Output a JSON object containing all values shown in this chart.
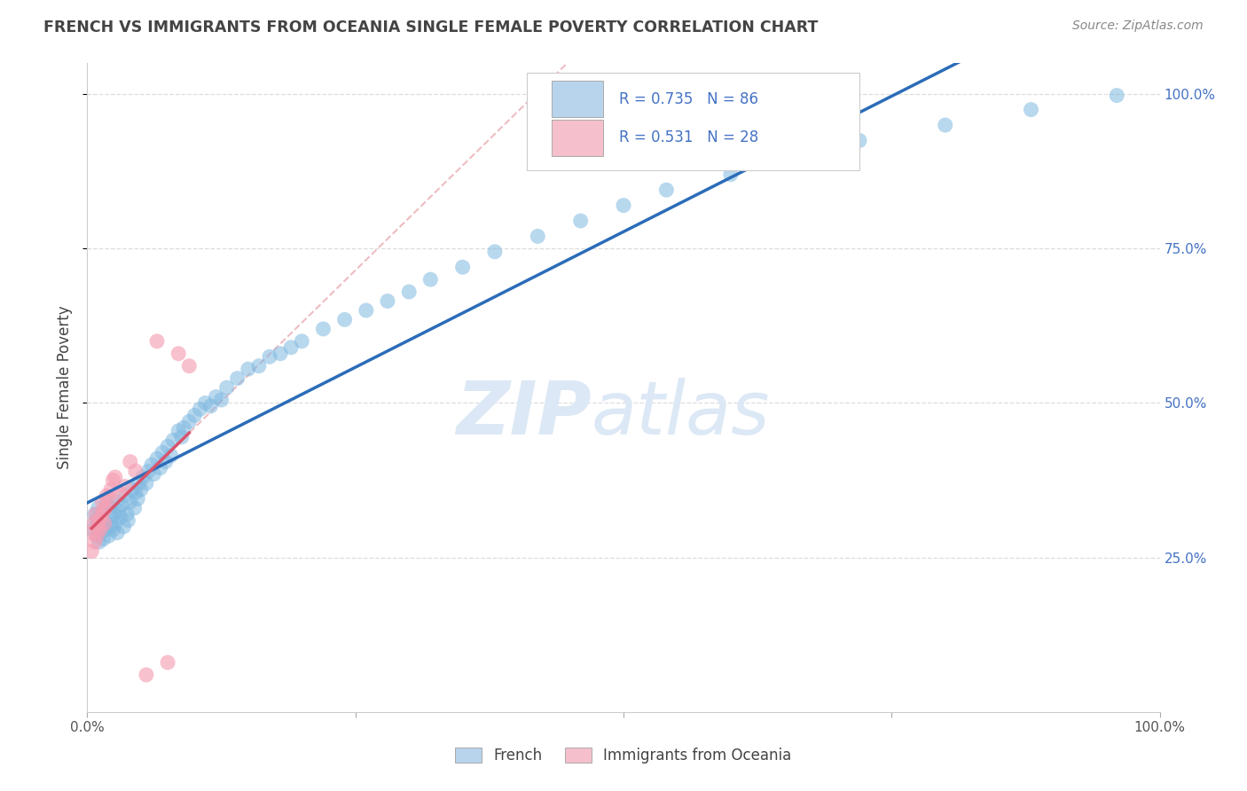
{
  "title": "FRENCH VS IMMIGRANTS FROM OCEANIA SINGLE FEMALE POVERTY CORRELATION CHART",
  "source": "Source: ZipAtlas.com",
  "ylabel": "Single Female Poverty",
  "xlim": [
    0,
    1
  ],
  "ylim": [
    0,
    1.05
  ],
  "french_R": 0.735,
  "french_N": 86,
  "oceania_R": 0.531,
  "oceania_N": 28,
  "blue_dot_color": "#7fb8e0",
  "blue_line_color": "#2b6cb8",
  "pink_dot_color": "#f5a0b5",
  "pink_line_color": "#d9536a",
  "pink_dash_color": "#e8a0a8",
  "legend_blue_fill": "#b8d4ec",
  "legend_pink_fill": "#f5c0cc",
  "title_color": "#444444",
  "source_color": "#888888",
  "watermark_color": "#dce8f5",
  "grid_color": "#dddddd",
  "ytick_color": "#4472c4",
  "xtick_color": "#555555",
  "french_x": [
    0.005,
    0.007,
    0.008,
    0.009,
    0.01,
    0.01,
    0.011,
    0.012,
    0.013,
    0.014,
    0.015,
    0.015,
    0.016,
    0.017,
    0.018,
    0.02,
    0.021,
    0.022,
    0.023,
    0.024,
    0.025,
    0.026,
    0.027,
    0.028,
    0.03,
    0.031,
    0.032,
    0.034,
    0.035,
    0.037,
    0.038,
    0.04,
    0.042,
    0.044,
    0.045,
    0.047,
    0.048,
    0.05,
    0.052,
    0.055,
    0.057,
    0.06,
    0.062,
    0.065,
    0.068,
    0.07,
    0.073,
    0.075,
    0.078,
    0.08,
    0.085,
    0.088,
    0.09,
    0.095,
    0.1,
    0.105,
    0.11,
    0.115,
    0.12,
    0.125,
    0.13,
    0.14,
    0.15,
    0.16,
    0.17,
    0.18,
    0.19,
    0.2,
    0.22,
    0.24,
    0.26,
    0.28,
    0.3,
    0.32,
    0.35,
    0.38,
    0.42,
    0.46,
    0.5,
    0.54,
    0.6,
    0.66,
    0.72,
    0.8,
    0.88,
    0.96
  ],
  "french_y": [
    0.295,
    0.32,
    0.31,
    0.285,
    0.33,
    0.305,
    0.275,
    0.29,
    0.315,
    0.3,
    0.28,
    0.325,
    0.31,
    0.295,
    0.34,
    0.285,
    0.33,
    0.3,
    0.315,
    0.295,
    0.32,
    0.305,
    0.34,
    0.29,
    0.325,
    0.315,
    0.335,
    0.3,
    0.35,
    0.32,
    0.31,
    0.34,
    0.36,
    0.33,
    0.355,
    0.345,
    0.37,
    0.36,
    0.38,
    0.37,
    0.39,
    0.4,
    0.385,
    0.41,
    0.395,
    0.42,
    0.405,
    0.43,
    0.415,
    0.44,
    0.455,
    0.445,
    0.46,
    0.47,
    0.48,
    0.49,
    0.5,
    0.495,
    0.51,
    0.505,
    0.525,
    0.54,
    0.555,
    0.56,
    0.575,
    0.58,
    0.59,
    0.6,
    0.62,
    0.635,
    0.65,
    0.665,
    0.68,
    0.7,
    0.72,
    0.745,
    0.77,
    0.795,
    0.82,
    0.845,
    0.87,
    0.9,
    0.925,
    0.95,
    0.975,
    0.998
  ],
  "oceania_x": [
    0.004,
    0.005,
    0.006,
    0.007,
    0.008,
    0.009,
    0.01,
    0.011,
    0.012,
    0.013,
    0.014,
    0.015,
    0.016,
    0.017,
    0.018,
    0.02,
    0.022,
    0.024,
    0.026,
    0.03,
    0.035,
    0.04,
    0.045,
    0.055,
    0.065,
    0.075,
    0.085,
    0.095
  ],
  "oceania_y": [
    0.26,
    0.29,
    0.305,
    0.275,
    0.32,
    0.285,
    0.3,
    0.31,
    0.295,
    0.315,
    0.34,
    0.325,
    0.305,
    0.33,
    0.35,
    0.345,
    0.36,
    0.375,
    0.38,
    0.355,
    0.365,
    0.405,
    0.39,
    0.06,
    0.6,
    0.08,
    0.58,
    0.56
  ]
}
